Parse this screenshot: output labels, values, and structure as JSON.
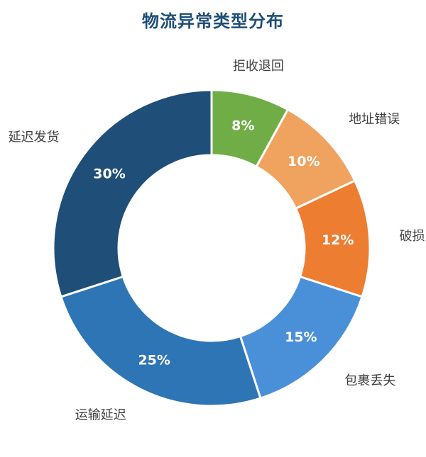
{
  "chart_data": {
    "type": "pie",
    "title": "物流异常类型分布",
    "hole": true,
    "categories": [
      "延迟发货",
      "拒收退回",
      "地址错误",
      "破损",
      "包裹丢失",
      "运输延迟"
    ],
    "values": [
      30,
      8,
      10,
      12,
      15,
      25
    ],
    "labels": [
      "30%",
      "8%",
      "10%",
      "12%",
      "15%",
      "25%"
    ],
    "colors": [
      "#1f4e79",
      "#70ad47",
      "#f0a35e",
      "#ed7d31",
      "#4a90d9",
      "#2e75b6"
    ]
  }
}
